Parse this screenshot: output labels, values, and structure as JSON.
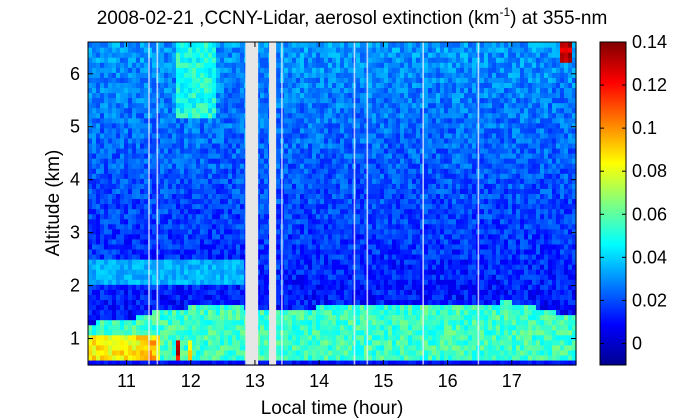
{
  "chart_data": {
    "type": "heatmap",
    "title": "2008-02-21 ,CCNY-Lidar, aerosol extinction (km⁻¹) at 355-nm",
    "title_parts": {
      "main": "2008-02-21 ,CCNY-Lidar, aerosol extinction (km",
      "superscript": "-1",
      "tail": ") at 355-nm"
    },
    "xlabel": "Local time (hour)",
    "ylabel": "Altitude (km)",
    "xlim": [
      10.4,
      18.0
    ],
    "ylim": [
      0.5,
      6.6
    ],
    "x_ticks": [
      11,
      12,
      13,
      14,
      15,
      16,
      17
    ],
    "y_ticks": [
      1,
      2,
      3,
      4,
      5,
      6
    ],
    "colorbar": {
      "range": [
        -0.01,
        0.14
      ],
      "ticks": [
        0,
        0.02,
        0.04,
        0.06,
        0.08,
        0.1,
        0.12,
        0.14
      ],
      "tick_labels": [
        "0",
        "0.02",
        "0.04",
        "0.06",
        "0.08",
        "0.1",
        "0.12",
        "0.14"
      ],
      "colormap": "jet"
    },
    "data_gaps": [
      [
        12.85,
        13.05
      ],
      [
        13.22,
        13.33
      ]
    ],
    "vertical_streaks": [
      11.35,
      11.48,
      13.42,
      14.55,
      14.75,
      15.62,
      16.48
    ],
    "boundary_layer": {
      "height_km": [
        {
          "x": 10.4,
          "y": 1.3
        },
        {
          "x": 11.0,
          "y": 1.35
        },
        {
          "x": 11.5,
          "y": 1.55
        },
        {
          "x": 12.0,
          "y": 1.6
        },
        {
          "x": 12.8,
          "y": 1.6
        },
        {
          "x": 13.4,
          "y": 1.55
        },
        {
          "x": 14.0,
          "y": 1.6
        },
        {
          "x": 15.0,
          "y": 1.6
        },
        {
          "x": 16.0,
          "y": 1.65
        },
        {
          "x": 17.0,
          "y": 1.7
        },
        {
          "x": 17.5,
          "y": 1.55
        },
        {
          "x": 18.0,
          "y": 1.4
        }
      ],
      "mean_extinction": 0.055
    },
    "features": [
      {
        "x": [
          10.4,
          11.5
        ],
        "y": [
          0.55,
          1.05
        ],
        "value": 0.085
      },
      {
        "x": [
          11.2,
          11.45
        ],
        "y": [
          0.55,
          1.0
        ],
        "value": 0.095
      },
      {
        "x": [
          11.75,
          11.85
        ],
        "y": [
          0.55,
          1.0
        ],
        "value": 0.125
      },
      {
        "x": [
          11.95,
          12.05
        ],
        "y": [
          0.55,
          1.0
        ],
        "value": 0.09
      },
      {
        "x": [
          17.78,
          17.95
        ],
        "y": [
          6.2,
          6.6
        ],
        "value": 0.13
      },
      {
        "x": [
          11.8,
          12.4
        ],
        "y": [
          5.2,
          6.6
        ],
        "value": 0.05
      }
    ],
    "background_extinction": 0.012,
    "residual_layer": {
      "y": [
        2.0,
        2.5
      ],
      "x": [
        10.4,
        12.8
      ],
      "value": 0.035
    }
  }
}
